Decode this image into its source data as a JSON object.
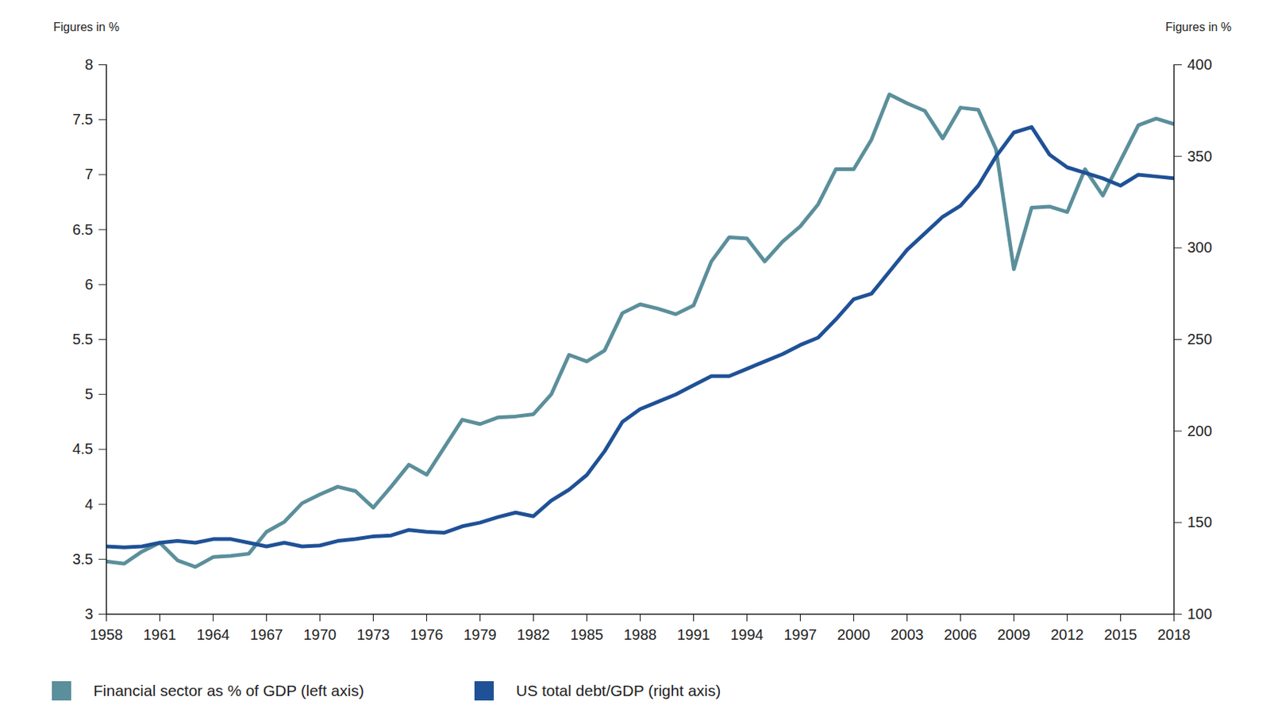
{
  "chart_data": {
    "type": "line",
    "y_label": "Figures in %",
    "y2_label": "Figures in %",
    "x": [
      1958,
      1959,
      1960,
      1961,
      1962,
      1963,
      1964,
      1965,
      1966,
      1967,
      1968,
      1969,
      1970,
      1971,
      1972,
      1973,
      1974,
      1975,
      1976,
      1977,
      1978,
      1979,
      1980,
      1981,
      1982,
      1983,
      1984,
      1985,
      1986,
      1987,
      1988,
      1989,
      1990,
      1991,
      1992,
      1993,
      1994,
      1995,
      1996,
      1997,
      1998,
      1999,
      2000,
      2001,
      2002,
      2003,
      2004,
      2005,
      2006,
      2007,
      2008,
      2009,
      2010,
      2011,
      2012,
      2013,
      2014,
      2015,
      2016,
      2017,
      2018
    ],
    "xlim": [
      1958,
      2018
    ],
    "xticks": [
      1958,
      1961,
      1964,
      1967,
      1970,
      1973,
      1976,
      1979,
      1982,
      1985,
      1988,
      1991,
      1994,
      1997,
      2000,
      2003,
      2006,
      2009,
      2012,
      2015,
      2018
    ],
    "ylim": [
      3,
      8
    ],
    "yticks": [
      3,
      3.5,
      4,
      4.5,
      5,
      5.5,
      6,
      6.5,
      7,
      7.5,
      8
    ],
    "y2lim": [
      100,
      400
    ],
    "y2ticks": [
      100,
      150,
      200,
      250,
      300,
      350,
      400
    ],
    "grid": false,
    "legend": "bottom",
    "series": [
      {
        "name": "Financial sector as % of GDP (left axis)",
        "color": "#5b8f9b",
        "axis": "y",
        "values": [
          3.48,
          3.46,
          3.57,
          3.65,
          3.49,
          3.43,
          3.52,
          3.53,
          3.55,
          3.75,
          3.84,
          4.01,
          4.09,
          4.16,
          4.12,
          3.97,
          4.16,
          4.36,
          4.27,
          4.52,
          4.77,
          4.73,
          4.79,
          4.8,
          4.82,
          5.0,
          5.36,
          5.3,
          5.4,
          5.74,
          5.82,
          5.78,
          5.73,
          5.81,
          6.21,
          6.43,
          6.42,
          6.21,
          6.39,
          6.53,
          6.73,
          7.05,
          7.05,
          7.32,
          7.73,
          7.65,
          7.58,
          7.33,
          7.61,
          7.59,
          7.23,
          6.14,
          6.7,
          6.71,
          6.66,
          7.05,
          6.81,
          7.13,
          7.45,
          7.51,
          7.46
        ]
      },
      {
        "name": "US total debt/GDP (right axis)",
        "color": "#1f5196",
        "axis": "y2",
        "values": [
          137,
          136.5,
          137,
          139,
          140,
          139,
          141,
          141,
          139,
          137,
          139,
          137,
          137.5,
          140,
          141,
          142.5,
          143,
          146,
          145,
          144.5,
          148,
          150,
          153,
          155.5,
          153.5,
          162,
          168,
          176,
          189,
          205,
          212,
          216,
          220,
          225,
          230,
          230,
          234,
          238,
          242,
          247,
          251,
          261,
          272,
          275,
          287,
          299,
          308,
          317,
          323,
          334,
          350,
          363,
          366,
          351,
          344,
          341,
          338,
          334,
          340,
          339,
          338
        ]
      }
    ]
  }
}
